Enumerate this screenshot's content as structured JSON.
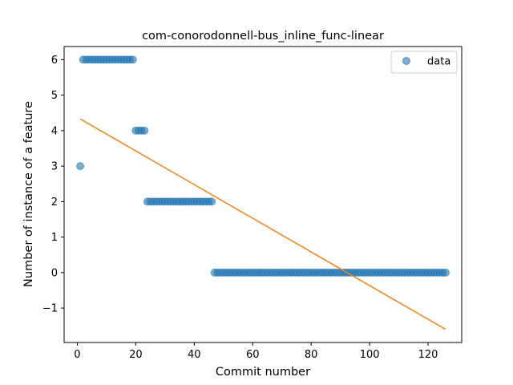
{
  "chart_data": {
    "type": "scatter",
    "title": "com-conorodonnell-bus_inline_func-linear",
    "xlabel": "Commit number",
    "ylabel": "Number of instance of a feature",
    "xlim": [
      -4.5,
      131.5
    ],
    "ylim": [
      -1.97,
      6.37
    ],
    "xticks": [
      0,
      20,
      40,
      60,
      80,
      100,
      120
    ],
    "yticks": [
      -1,
      0,
      1,
      2,
      3,
      4,
      5,
      6
    ],
    "grid": false,
    "legend": {
      "placement": "top-right",
      "entries": [
        "data"
      ]
    },
    "colors": {
      "points": "#1f77b4",
      "fit": "#ff7f0e"
    },
    "series": [
      {
        "name": "data",
        "kind": "scatter",
        "segments": [
          {
            "x_from": 1,
            "x_to": 1,
            "y": 3
          },
          {
            "x_from": 2,
            "x_to": 19,
            "y": 6
          },
          {
            "x_from": 20,
            "x_to": 23,
            "y": 4
          },
          {
            "x_from": 24,
            "x_to": 46,
            "y": 2
          },
          {
            "x_from": 47,
            "x_to": 126,
            "y": 0
          }
        ]
      },
      {
        "kind": "line",
        "x": [
          1,
          126
        ],
        "y": [
          4.33,
          -1.6
        ]
      }
    ]
  }
}
